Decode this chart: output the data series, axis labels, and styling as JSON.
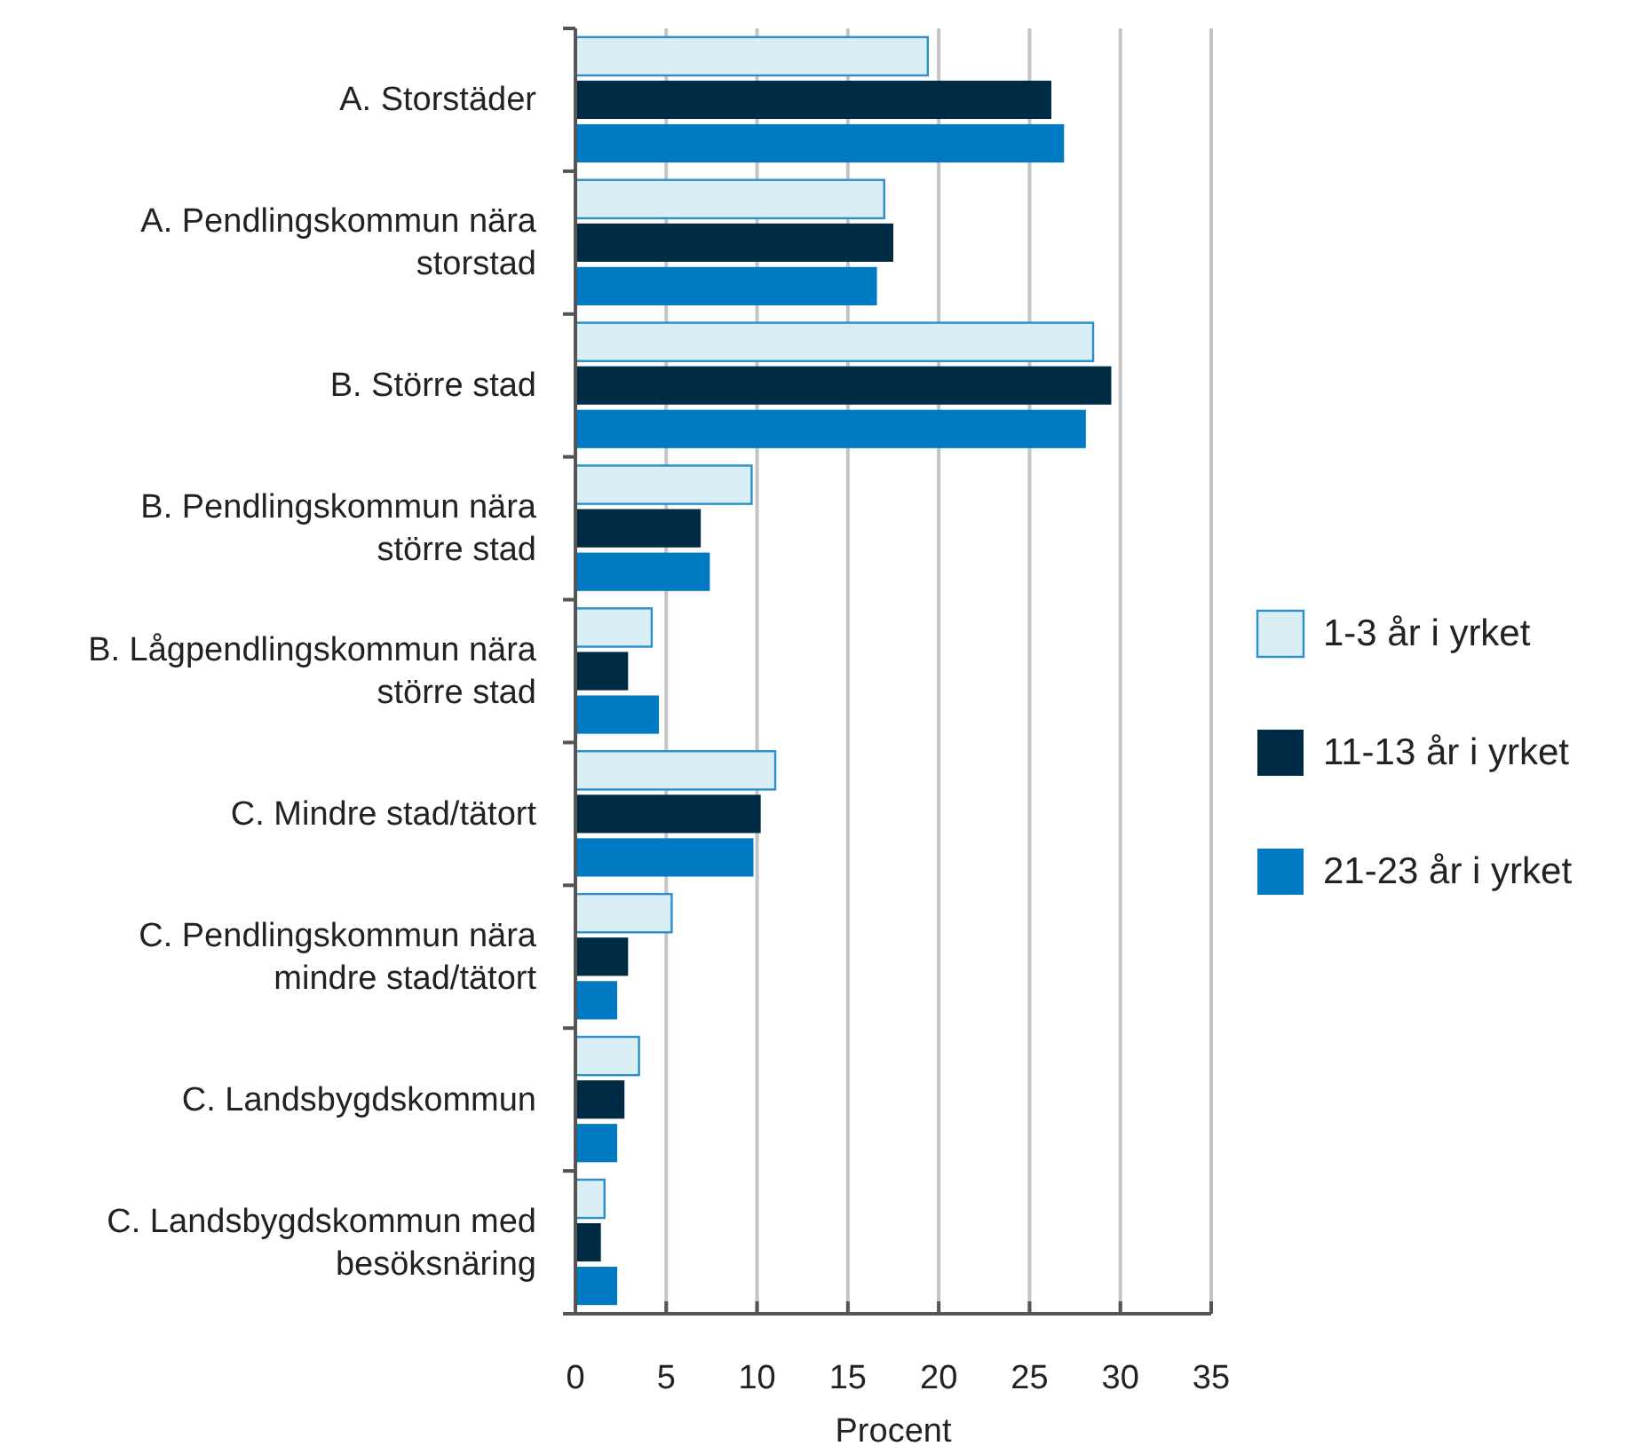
{
  "chart_data": {
    "type": "bar",
    "orientation": "horizontal",
    "xlabel": "Procent",
    "categories": [
      "A. Storstäder",
      "A. Pendlingskommun nära storstad",
      "B. Större stad",
      "B. Pendlingskommun nära större stad",
      "B. Lågpendlingskommun nära större stad",
      "C. Mindre stad/tätort",
      "C. Pendlingskommun nära mindre stad/tätort",
      "C. Landsbygdskommun",
      "C. Landsbygdskommun med besöksnäring"
    ],
    "series": [
      {
        "name": "1-3 år i yrket",
        "color": "#daeef6",
        "values": [
          19.4,
          17.0,
          28.5,
          9.7,
          4.2,
          11.0,
          5.3,
          3.5,
          1.6
        ]
      },
      {
        "name": "11-13 år i yrket",
        "color": "#002b45",
        "values": [
          26.2,
          17.5,
          29.5,
          6.9,
          2.9,
          10.2,
          2.9,
          2.7,
          1.4
        ]
      },
      {
        "name": "21-23 år i yrket",
        "color": "#007ac2",
        "values": [
          26.9,
          16.6,
          28.1,
          7.4,
          4.6,
          9.8,
          2.3,
          2.3,
          2.3
        ]
      }
    ],
    "xlim": [
      0,
      35
    ],
    "xticks": [
      0,
      5,
      10,
      15,
      20,
      25,
      30,
      35
    ],
    "grid": "x",
    "legend": "right"
  }
}
